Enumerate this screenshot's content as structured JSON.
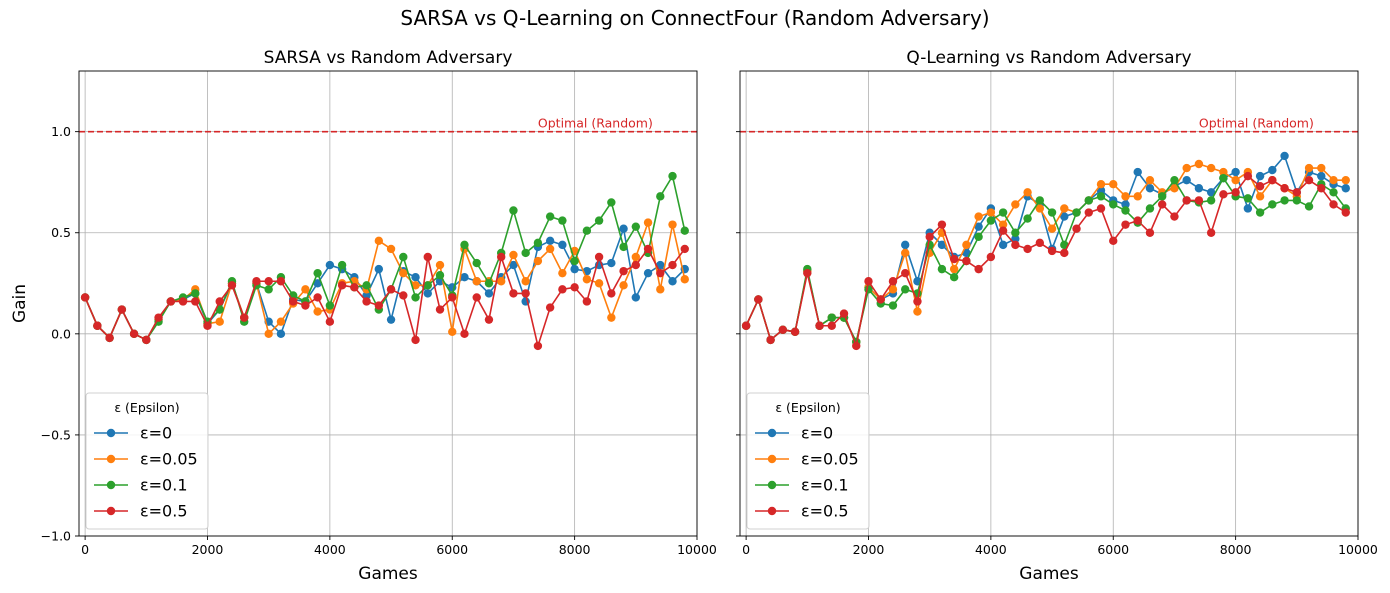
{
  "figure": {
    "title": "SARSA vs Q-Learning on ConnectFour (Random Adversary)"
  },
  "chart_data": [
    {
      "type": "line",
      "title": "SARSA vs Random Adversary",
      "xlabel": "Games",
      "ylabel": "Gain",
      "xlim": [
        -100,
        10000
      ],
      "ylim": [
        -1.0,
        1.3
      ],
      "xticks": [
        0,
        2000,
        4000,
        6000,
        8000,
        10000
      ],
      "xtick_labels": [
        "0",
        "2000",
        "4000",
        "6000",
        "8000",
        "10000"
      ],
      "yticks": [
        -1.0,
        -0.5,
        0.0,
        0.5,
        1.0
      ],
      "ytick_labels": [
        "−1.0",
        "−0.5",
        "0.0",
        "0.5",
        "1.0"
      ],
      "grid": true,
      "reference_line": {
        "y": 1.0,
        "label": "Optimal (Random)",
        "color": "#d62728",
        "style": "dashed"
      },
      "legend": {
        "title": "ε (Epsilon)",
        "placement": "lower-left"
      },
      "x": [
        0,
        200,
        400,
        600,
        800,
        1000,
        1200,
        1400,
        1600,
        1800,
        2000,
        2200,
        2400,
        2600,
        2800,
        3000,
        3200,
        3400,
        3600,
        3800,
        4000,
        4200,
        4400,
        4600,
        4800,
        5000,
        5200,
        5400,
        5600,
        5800,
        6000,
        6200,
        6400,
        6600,
        6800,
        7000,
        7200,
        7400,
        7600,
        7800,
        8000,
        8200,
        8400,
        8600,
        8800,
        9000,
        9200,
        9400,
        9600,
        9800
      ],
      "series": [
        {
          "name": "ε=0",
          "color": "#1f77b4",
          "values": [
            0.18,
            0.04,
            -0.02,
            0.12,
            0.0,
            -0.03,
            0.07,
            0.16,
            0.17,
            0.2,
            0.05,
            0.12,
            0.25,
            0.08,
            0.25,
            0.06,
            0.0,
            0.17,
            0.16,
            0.25,
            0.34,
            0.32,
            0.28,
            0.19,
            0.32,
            0.07,
            0.31,
            0.28,
            0.2,
            0.26,
            0.23,
            0.28,
            0.26,
            0.2,
            0.28,
            0.34,
            0.16,
            0.43,
            0.46,
            0.44,
            0.32,
            0.31,
            0.34,
            0.35,
            0.52,
            0.18,
            0.3,
            0.34,
            0.26,
            0.32
          ]
        },
        {
          "name": "ε=0.05",
          "color": "#ff7f0e",
          "values": [
            0.18,
            0.04,
            -0.02,
            0.12,
            0.0,
            -0.03,
            0.07,
            0.16,
            0.17,
            0.22,
            0.05,
            0.06,
            0.25,
            0.08,
            0.25,
            0.0,
            0.06,
            0.15,
            0.22,
            0.11,
            0.12,
            0.25,
            0.26,
            0.22,
            0.46,
            0.42,
            0.3,
            0.24,
            0.24,
            0.34,
            0.01,
            0.42,
            0.26,
            0.26,
            0.26,
            0.39,
            0.26,
            0.36,
            0.42,
            0.3,
            0.41,
            0.27,
            0.25,
            0.08,
            0.24,
            0.38,
            0.55,
            0.22,
            0.54,
            0.27
          ]
        },
        {
          "name": "ε=0.1",
          "color": "#2ca02c",
          "values": [
            0.18,
            0.04,
            -0.02,
            0.12,
            0.0,
            -0.03,
            0.06,
            0.16,
            0.18,
            0.2,
            0.06,
            0.12,
            0.26,
            0.06,
            0.24,
            0.22,
            0.28,
            0.19,
            0.16,
            0.3,
            0.14,
            0.34,
            0.23,
            0.24,
            0.12,
            0.22,
            0.38,
            0.18,
            0.24,
            0.29,
            0.19,
            0.44,
            0.35,
            0.25,
            0.4,
            0.61,
            0.4,
            0.45,
            0.58,
            0.56,
            0.36,
            0.51,
            0.56,
            0.65,
            0.43,
            0.53,
            0.4,
            0.68,
            0.78,
            0.51
          ]
        },
        {
          "name": "ε=0.5",
          "color": "#d62728",
          "values": [
            0.18,
            0.04,
            -0.02,
            0.12,
            0.0,
            -0.03,
            0.08,
            0.16,
            0.16,
            0.16,
            0.04,
            0.16,
            0.24,
            0.08,
            0.26,
            0.26,
            0.26,
            0.16,
            0.14,
            0.18,
            0.06,
            0.24,
            0.23,
            0.16,
            0.14,
            0.22,
            0.19,
            -0.03,
            0.38,
            0.12,
            0.18,
            0.0,
            0.18,
            0.07,
            0.38,
            0.2,
            0.2,
            -0.06,
            0.13,
            0.22,
            0.23,
            0.16,
            0.38,
            0.2,
            0.31,
            0.34,
            0.42,
            0.3,
            0.34,
            0.42
          ]
        }
      ]
    },
    {
      "type": "line",
      "title": "Q-Learning vs Random Adversary",
      "xlabel": "Games",
      "ylabel": "",
      "xlim": [
        -100,
        10000
      ],
      "ylim": [
        -1.0,
        1.3
      ],
      "xticks": [
        0,
        2000,
        4000,
        6000,
        8000,
        10000
      ],
      "xtick_labels": [
        "0",
        "2000",
        "4000",
        "6000",
        "8000",
        "10000"
      ],
      "yticks": [
        -1.0,
        -0.5,
        0.0,
        0.5,
        1.0
      ],
      "grid": true,
      "reference_line": {
        "y": 1.0,
        "label": "Optimal (Random)",
        "color": "#d62728",
        "style": "dashed"
      },
      "legend": {
        "title": "ε (Epsilon)",
        "placement": "lower-left"
      },
      "x": [
        0,
        200,
        400,
        600,
        800,
        1000,
        1200,
        1400,
        1600,
        1800,
        2000,
        2200,
        2400,
        2600,
        2800,
        3000,
        3200,
        3400,
        3600,
        3800,
        4000,
        4200,
        4400,
        4600,
        4800,
        5000,
        5200,
        5400,
        5600,
        5800,
        6000,
        6200,
        6400,
        6600,
        6800,
        7000,
        7200,
        7400,
        7600,
        7800,
        8000,
        8200,
        8400,
        8600,
        8800,
        9000,
        9200,
        9400,
        9600,
        9800
      ],
      "series": [
        {
          "name": "ε=0",
          "color": "#1f77b4",
          "values": [
            0.04,
            0.17,
            -0.03,
            0.02,
            0.01,
            0.31,
            0.04,
            0.08,
            0.08,
            -0.04,
            0.23,
            0.17,
            0.2,
            0.44,
            0.26,
            0.5,
            0.44,
            0.38,
            0.4,
            0.53,
            0.62,
            0.44,
            0.47,
            0.68,
            0.64,
            0.42,
            0.58,
            0.6,
            0.66,
            0.71,
            0.66,
            0.64,
            0.8,
            0.72,
            0.69,
            0.73,
            0.76,
            0.72,
            0.7,
            0.77,
            0.8,
            0.62,
            0.78,
            0.81,
            0.88,
            0.7,
            0.8,
            0.78,
            0.74,
            0.72
          ]
        },
        {
          "name": "ε=0.05",
          "color": "#ff7f0e",
          "values": [
            0.04,
            0.17,
            -0.03,
            0.02,
            0.01,
            0.31,
            0.04,
            0.08,
            0.08,
            -0.04,
            0.23,
            0.17,
            0.22,
            0.4,
            0.11,
            0.4,
            0.5,
            0.32,
            0.44,
            0.58,
            0.6,
            0.54,
            0.64,
            0.7,
            0.62,
            0.52,
            0.62,
            0.6,
            0.66,
            0.74,
            0.74,
            0.68,
            0.68,
            0.76,
            0.7,
            0.72,
            0.82,
            0.84,
            0.82,
            0.8,
            0.76,
            0.8,
            0.68,
            0.76,
            0.72,
            0.68,
            0.82,
            0.82,
            0.76,
            0.76
          ]
        },
        {
          "name": "ε=0.1",
          "color": "#2ca02c",
          "values": [
            0.04,
            0.17,
            -0.03,
            0.02,
            0.01,
            0.32,
            0.04,
            0.08,
            0.08,
            -0.04,
            0.22,
            0.15,
            0.14,
            0.22,
            0.2,
            0.44,
            0.32,
            0.28,
            0.36,
            0.48,
            0.56,
            0.6,
            0.5,
            0.57,
            0.66,
            0.6,
            0.44,
            0.6,
            0.66,
            0.68,
            0.64,
            0.61,
            0.55,
            0.62,
            0.68,
            0.76,
            0.66,
            0.65,
            0.66,
            0.77,
            0.68,
            0.67,
            0.6,
            0.64,
            0.66,
            0.66,
            0.63,
            0.74,
            0.7,
            0.62
          ]
        },
        {
          "name": "ε=0.5",
          "color": "#d62728",
          "values": [
            0.04,
            0.17,
            -0.03,
            0.02,
            0.01,
            0.3,
            0.04,
            0.04,
            0.1,
            -0.06,
            0.26,
            0.17,
            0.26,
            0.3,
            0.16,
            0.48,
            0.54,
            0.37,
            0.36,
            0.32,
            0.38,
            0.51,
            0.44,
            0.42,
            0.45,
            0.41,
            0.4,
            0.52,
            0.6,
            0.62,
            0.46,
            0.54,
            0.56,
            0.5,
            0.64,
            0.58,
            0.66,
            0.66,
            0.5,
            0.69,
            0.7,
            0.78,
            0.73,
            0.76,
            0.72,
            0.7,
            0.76,
            0.72,
            0.64,
            0.6
          ]
        }
      ]
    }
  ]
}
